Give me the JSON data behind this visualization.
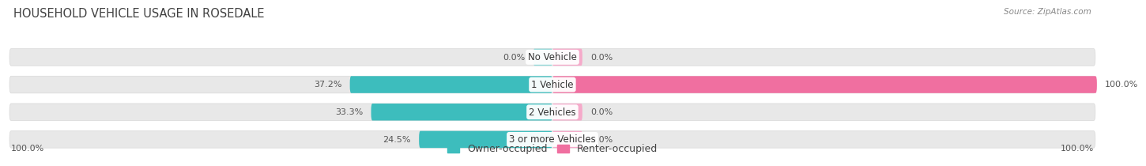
{
  "title": "HOUSEHOLD VEHICLE USAGE IN ROSEDALE",
  "source": "Source: ZipAtlas.com",
  "categories": [
    "No Vehicle",
    "1 Vehicle",
    "2 Vehicles",
    "3 or more Vehicles"
  ],
  "owner_values": [
    0.0,
    37.2,
    33.3,
    24.5
  ],
  "renter_values": [
    0.0,
    100.0,
    0.0,
    0.0
  ],
  "owner_color_full": "#3DBDBD",
  "owner_color_light": "#93D9D9",
  "renter_color_full": "#F06FA0",
  "renter_color_light": "#F5AACA",
  "bar_bg_color": "#E8E8E8",
  "bar_bg_border": "#D8D8D8",
  "title_fontsize": 10.5,
  "source_fontsize": 7.5,
  "label_fontsize": 8,
  "cat_fontsize": 8.5,
  "legend_fontsize": 9,
  "tick_fontsize": 8
}
